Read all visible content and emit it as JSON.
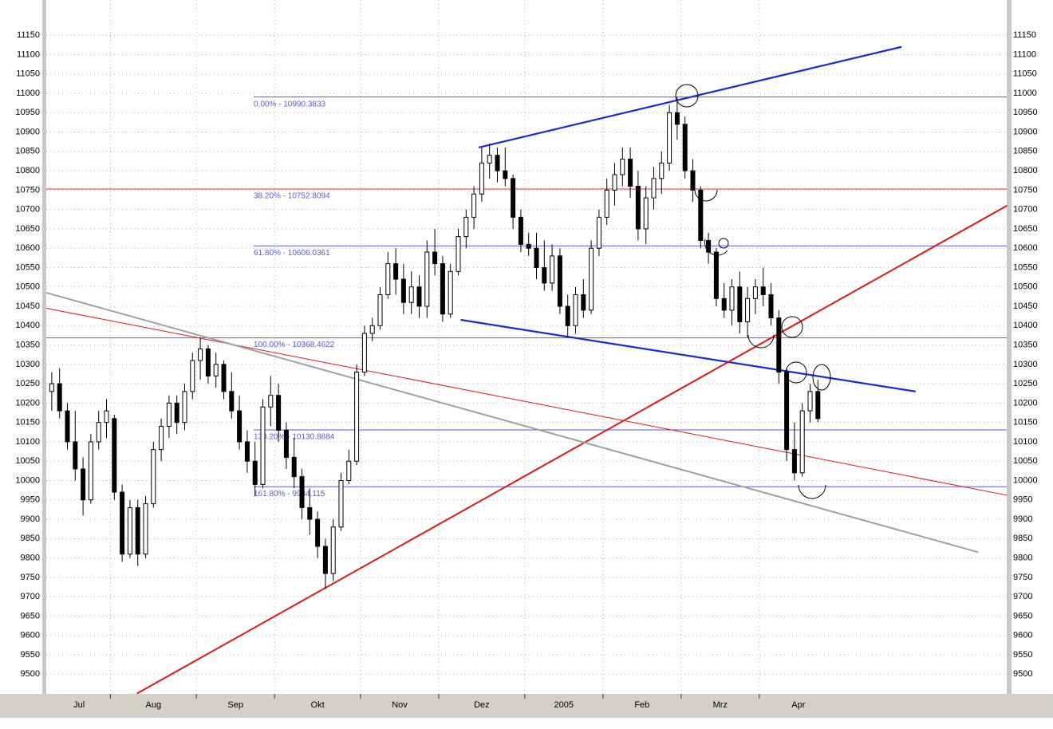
{
  "chart_data": {
    "type": "candlestick",
    "categories": [
      "Jul",
      null,
      null,
      null,
      null,
      null,
      null,
      null,
      "Aug",
      null,
      null,
      null,
      null,
      null,
      null,
      null,
      null,
      null,
      null,
      "Sep",
      null,
      null,
      null,
      null,
      null,
      null,
      null,
      null,
      null,
      "Okt",
      null,
      null,
      null,
      null,
      null,
      null,
      null,
      null,
      null,
      null,
      "Nov",
      null,
      null,
      null,
      null,
      null,
      null,
      null,
      null,
      null,
      "Dez",
      null,
      null,
      null,
      null,
      null,
      null,
      null,
      null,
      null,
      null,
      "2005",
      null,
      null,
      null,
      null,
      null,
      null,
      null,
      null,
      null,
      "Feb",
      null,
      null,
      null,
      null,
      null,
      null,
      null,
      null,
      null,
      "Mrz",
      null,
      null,
      null,
      null,
      null,
      null,
      null,
      null,
      null,
      "Apr",
      null,
      null,
      null,
      null,
      null,
      null,
      null
    ],
    "ohlc": [
      [
        10230,
        10280,
        10180,
        10250
      ],
      [
        10250,
        10290,
        10160,
        10180
      ],
      [
        10180,
        10200,
        10080,
        10100
      ],
      [
        10100,
        10180,
        10000,
        10030
      ],
      [
        10030,
        10060,
        9910,
        9950
      ],
      [
        9950,
        10120,
        9940,
        10100
      ],
      [
        10100,
        10180,
        10080,
        10150
      ],
      [
        10150,
        10210,
        10110,
        10180
      ],
      [
        10160,
        10170,
        9950,
        9970
      ],
      [
        9970,
        9990,
        9790,
        9810
      ],
      [
        9810,
        9950,
        9800,
        9930
      ],
      [
        9930,
        9950,
        9780,
        9810
      ],
      [
        9810,
        9960,
        9800,
        9940
      ],
      [
        9940,
        10100,
        9930,
        10080
      ],
      [
        10080,
        10160,
        10050,
        10140
      ],
      [
        10140,
        10220,
        10110,
        10200
      ],
      [
        10200,
        10220,
        10120,
        10150
      ],
      [
        10150,
        10250,
        10130,
        10230
      ],
      [
        10230,
        10330,
        10210,
        10310
      ],
      [
        10310,
        10370,
        10260,
        10340
      ],
      [
        10340,
        10350,
        10250,
        10270
      ],
      [
        10270,
        10330,
        10240,
        10300
      ],
      [
        10300,
        10310,
        10210,
        10230
      ],
      [
        10230,
        10280,
        10160,
        10180
      ],
      [
        10180,
        10220,
        10080,
        10100
      ],
      [
        10100,
        10130,
        10020,
        10050
      ],
      [
        10050,
        10100,
        9960,
        9990
      ],
      [
        9990,
        10210,
        9980,
        10190
      ],
      [
        10190,
        10270,
        10140,
        10220
      ],
      [
        10220,
        10250,
        10100,
        10130
      ],
      [
        10130,
        10150,
        10030,
        10060
      ],
      [
        10060,
        10110,
        9980,
        10010
      ],
      [
        10010,
        10030,
        9900,
        9930
      ],
      [
        9930,
        9980,
        9860,
        9900
      ],
      [
        9900,
        9920,
        9800,
        9830
      ],
      [
        9830,
        9850,
        9720,
        9760
      ],
      [
        9760,
        9900,
        9740,
        9880
      ],
      [
        9880,
        10020,
        9870,
        10000
      ],
      [
        10000,
        10080,
        9990,
        10050
      ],
      [
        10050,
        10300,
        10040,
        10280
      ],
      [
        10280,
        10400,
        10270,
        10380
      ],
      [
        10380,
        10420,
        10360,
        10400
      ],
      [
        10400,
        10500,
        10390,
        10480
      ],
      [
        10480,
        10590,
        10470,
        10560
      ],
      [
        10560,
        10600,
        10480,
        10520
      ],
      [
        10520,
        10560,
        10430,
        10460
      ],
      [
        10460,
        10540,
        10430,
        10500
      ],
      [
        10500,
        10530,
        10420,
        10450
      ],
      [
        10450,
        10620,
        10420,
        10590
      ],
      [
        10590,
        10650,
        10530,
        10560
      ],
      [
        10560,
        10580,
        10410,
        10430
      ],
      [
        10430,
        10560,
        10420,
        10540
      ],
      [
        10540,
        10650,
        10530,
        10630
      ],
      [
        10630,
        10700,
        10600,
        10680
      ],
      [
        10680,
        10760,
        10650,
        10740
      ],
      [
        10740,
        10860,
        10720,
        10820
      ],
      [
        10820,
        10870,
        10780,
        10840
      ],
      [
        10840,
        10860,
        10770,
        10800
      ],
      [
        10800,
        10860,
        10760,
        10780
      ],
      [
        10780,
        10790,
        10650,
        10680
      ],
      [
        10680,
        10700,
        10590,
        10610
      ],
      [
        10610,
        10640,
        10580,
        10600
      ],
      [
        10600,
        10640,
        10520,
        10550
      ],
      [
        10550,
        10620,
        10490,
        10510
      ],
      [
        10510,
        10610,
        10490,
        10580
      ],
      [
        10580,
        10600,
        10430,
        10450
      ],
      [
        10450,
        10480,
        10370,
        10400
      ],
      [
        10400,
        10500,
        10380,
        10480
      ],
      [
        10480,
        10520,
        10420,
        10440
      ],
      [
        10440,
        10620,
        10430,
        10600
      ],
      [
        10600,
        10700,
        10580,
        10680
      ],
      [
        10680,
        10780,
        10660,
        10750
      ],
      [
        10750,
        10820,
        10710,
        10790
      ],
      [
        10790,
        10860,
        10760,
        10830
      ],
      [
        10830,
        10860,
        10730,
        10760
      ],
      [
        10760,
        10800,
        10620,
        10650
      ],
      [
        10650,
        10760,
        10610,
        10730
      ],
      [
        10730,
        10810,
        10700,
        10780
      ],
      [
        10780,
        10850,
        10740,
        10820
      ],
      [
        10820,
        10970,
        10800,
        10950
      ],
      [
        10950,
        10990,
        10880,
        10920
      ],
      [
        10920,
        10940,
        10780,
        10800
      ],
      [
        10800,
        10830,
        10720,
        10750
      ],
      [
        10750,
        10760,
        10600,
        10620
      ],
      [
        10620,
        10640,
        10560,
        10590
      ],
      [
        10590,
        10600,
        10450,
        10470
      ],
      [
        10470,
        10510,
        10420,
        10440
      ],
      [
        10440,
        10520,
        10400,
        10500
      ],
      [
        10500,
        10540,
        10380,
        10410
      ],
      [
        10410,
        10500,
        10370,
        10470
      ],
      [
        10470,
        10520,
        10430,
        10500
      ],
      [
        10500,
        10550,
        10450,
        10480
      ],
      [
        10480,
        10510,
        10400,
        10420
      ],
      [
        10420,
        10440,
        10250,
        10280
      ],
      [
        10280,
        10290,
        10050,
        10080
      ],
      [
        10080,
        10150,
        10000,
        10020
      ],
      [
        10020,
        10200,
        10010,
        10180
      ],
      [
        10180,
        10250,
        10150,
        10230
      ],
      [
        10230,
        10260,
        10150,
        10160
      ]
    ],
    "ylim": [
      9449,
      11241
    ],
    "yticks": [
      9500,
      9550,
      9600,
      9650,
      9700,
      9750,
      9800,
      9850,
      9900,
      9950,
      10000,
      10050,
      10100,
      10150,
      10200,
      10250,
      10300,
      10350,
      10400,
      10450,
      10500,
      10550,
      10600,
      10650,
      10700,
      10750,
      10800,
      10850,
      10900,
      10950,
      11000,
      11050,
      11100,
      11150
    ],
    "grid": true,
    "fib_levels": [
      {
        "label": "0.00% - 10990.3833",
        "value": 10990.3833,
        "color": "#5a5ad8",
        "full": false
      },
      {
        "label": "38.20% - 10752.8094",
        "value": 10752.8094,
        "color": "#e03030",
        "full": true
      },
      {
        "label": "61.80% - 10606.0361",
        "value": 10606.0361,
        "color": "#5a5ad8",
        "full": false
      },
      {
        "label": "100.00% - 10368.4622",
        "value": 10368.4622,
        "color": "#a040b0",
        "full": true
      },
      {
        "label": "138.20% - 10130.8884",
        "value": 10130.8884,
        "color": "#5a5ad8",
        "full": false
      },
      {
        "label": "161.80% - 9984.115",
        "value": 9984.115,
        "color": "#5a5ad8",
        "full": false
      }
    ],
    "trendlines": [
      {
        "color": "#1a2ad8",
        "width": 2.2,
        "from": [
          54.6,
          10860
        ],
        "to": [
          108.7,
          11120
        ]
      },
      {
        "color": "#1a2ad8",
        "width": 2.2,
        "from": [
          52.3,
          10415
        ],
        "to": [
          110.5,
          10230
        ]
      },
      {
        "color": "#e01818",
        "width": 2,
        "from": [
          10.9,
          9450
        ],
        "to": [
          122.2,
          10710
        ]
      },
      {
        "color": "#e01818",
        "width": 1,
        "from": [
          -0.7,
          10445
        ],
        "to": [
          122.2,
          9962
        ]
      },
      {
        "color": "#a0a0a0",
        "width": 2,
        "from": [
          -0.7,
          10485
        ],
        "to": [
          118.5,
          9815
        ]
      }
    ],
    "up_color": "#ffffff",
    "down_color": "#000000"
  }
}
